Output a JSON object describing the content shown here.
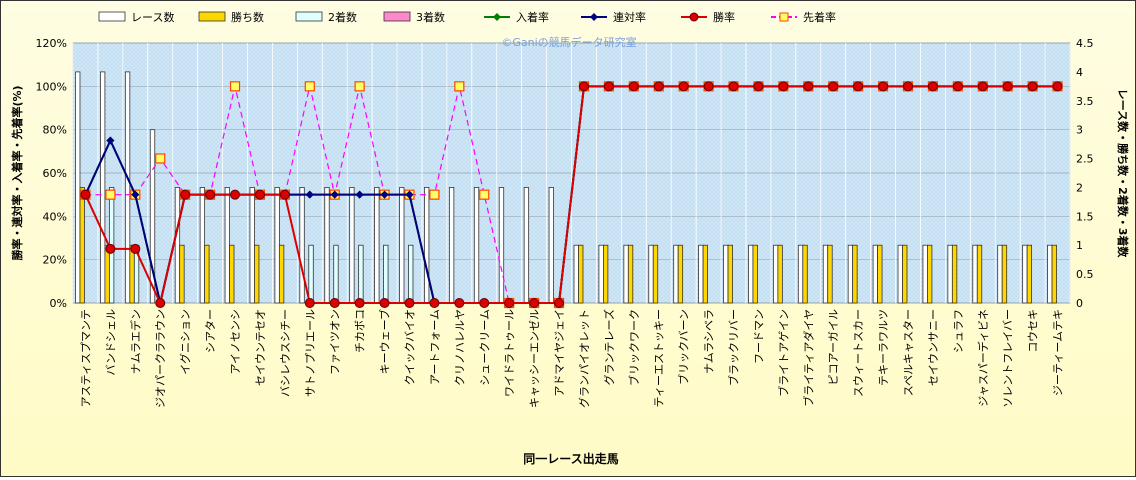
{
  "watermark": "©Ganiの競馬データ研究室",
  "chart_data": {
    "type": "bar",
    "xlabel": "同一レース出走馬",
    "ylabel_left": "勝率・連対率・入着率・先着率(%)",
    "ylabel_right": "レース数・勝ち数・2着数・3着数",
    "y_left_range": [
      0,
      120
    ],
    "y_left_ticks": [
      "0%",
      "20%",
      "40%",
      "60%",
      "80%",
      "100%",
      "120%"
    ],
    "y_right_range": [
      0,
      4.5
    ],
    "y_right_ticks": [
      "0",
      "0.5",
      "1",
      "1.5",
      "2",
      "2.5",
      "3",
      "3.5",
      "4",
      "4.5"
    ],
    "legend_position": "top",
    "grid": true,
    "categories": [
      "アスティスプマンテ",
      "バンドシェル",
      "ナムラエデン",
      "ジオパークララウン",
      "イグニション",
      "シアター",
      "アイノセンシ",
      "セイウンテセオ",
      "バシレウスシチー",
      "サトノプリエール",
      "ファイツオン",
      "チカボコ",
      "キーウェーブ",
      "クイックバイオ",
      "アートフォーム",
      "クリノハレルヤ",
      "シュークリーム",
      "ワイドラトゥール",
      "キャッシーエンゼル",
      "アドマイヤジェイ",
      "グランパイオレット",
      "グランテレーズ",
      "ブリックワーク",
      "ティーエストッキー",
      "ブリックバーン",
      "ナムラシベラ",
      "ブラックリバー",
      "フードマン",
      "ブライトアゲイン",
      "ブライティアダイヤ",
      "ピコアーガイル",
      "スウィートスカー",
      "テキーラワルツ",
      "スペルキャスター",
      "セイウンサニー",
      "シュラフ",
      "ジャスパーディビネ",
      "ソレントフレイバー",
      "コウセキ",
      "ジーティームテキ"
    ],
    "series": [
      {
        "name": "レース数",
        "kind": "bar",
        "axis": "right",
        "color": "#ffffff",
        "values": [
          4,
          4,
          4,
          3,
          2,
          2,
          2,
          2,
          2,
          2,
          2,
          2,
          2,
          2,
          2,
          2,
          2,
          2,
          2,
          2,
          1,
          1,
          1,
          1,
          1,
          1,
          1,
          1,
          1,
          1,
          1,
          1,
          1,
          1,
          1,
          1,
          1,
          1,
          1,
          1
        ]
      },
      {
        "name": "勝ち数",
        "kind": "bar",
        "axis": "right",
        "color": "#ffd700",
        "values": [
          2,
          1,
          1,
          0,
          1,
          1,
          1,
          1,
          1,
          0,
          0,
          0,
          0,
          0,
          0,
          0,
          0,
          0,
          0,
          0,
          1,
          1,
          1,
          1,
          1,
          1,
          1,
          1,
          1,
          1,
          1,
          1,
          1,
          1,
          1,
          1,
          1,
          1,
          1,
          1
        ]
      },
      {
        "name": "2着数",
        "kind": "bar",
        "axis": "right",
        "color": "#e0ffff",
        "values": [
          0,
          2,
          1,
          0,
          0,
          0,
          0,
          0,
          0,
          1,
          1,
          1,
          1,
          1,
          0,
          0,
          0,
          0,
          0,
          0,
          0,
          0,
          0,
          0,
          0,
          0,
          0,
          0,
          0,
          0,
          0,
          0,
          0,
          0,
          0,
          0,
          0,
          0,
          0,
          0
        ]
      },
      {
        "name": "3着数",
        "kind": "bar",
        "axis": "right",
        "color": "#ff88cc",
        "values": [
          0,
          0,
          0,
          0,
          0,
          0,
          0,
          0,
          0,
          0,
          0,
          0,
          0,
          0,
          0,
          0,
          0,
          0,
          0,
          0,
          0,
          0,
          0,
          0,
          0,
          0,
          0,
          0,
          0,
          0,
          0,
          0,
          0,
          0,
          0,
          0,
          0,
          0,
          0,
          0
        ]
      },
      {
        "name": "入着率",
        "kind": "line",
        "axis": "left",
        "color": "#008000",
        "marker": "diamond",
        "values": [
          50,
          75,
          50,
          0,
          50,
          50,
          50,
          50,
          50,
          50,
          50,
          50,
          50,
          50,
          0,
          0,
          0,
          0,
          0,
          0,
          100,
          100,
          100,
          100,
          100,
          100,
          100,
          100,
          100,
          100,
          100,
          100,
          100,
          100,
          100,
          100,
          100,
          100,
          100,
          100
        ]
      },
      {
        "name": "連対率",
        "kind": "line",
        "axis": "left",
        "color": "#000080",
        "marker": "diamond",
        "values": [
          50,
          75,
          50,
          0,
          50,
          50,
          50,
          50,
          50,
          50,
          50,
          50,
          50,
          50,
          0,
          0,
          0,
          0,
          0,
          0,
          100,
          100,
          100,
          100,
          100,
          100,
          100,
          100,
          100,
          100,
          100,
          100,
          100,
          100,
          100,
          100,
          100,
          100,
          100,
          100
        ]
      },
      {
        "name": "勝率",
        "kind": "line",
        "axis": "left",
        "color": "#dd0000",
        "marker": "circle",
        "values": [
          50,
          25,
          25,
          0,
          50,
          50,
          50,
          50,
          50,
          0,
          0,
          0,
          0,
          0,
          0,
          0,
          0,
          0,
          0,
          0,
          100,
          100,
          100,
          100,
          100,
          100,
          100,
          100,
          100,
          100,
          100,
          100,
          100,
          100,
          100,
          100,
          100,
          100,
          100,
          100
        ]
      },
      {
        "name": "先着率",
        "kind": "dashed",
        "axis": "left",
        "color": "#ff00ff",
        "marker": "square",
        "values": [
          50,
          50,
          50,
          66.7,
          50,
          50,
          100,
          50,
          50,
          100,
          50,
          100,
          50,
          50,
          50,
          100,
          50,
          0,
          0,
          0,
          100,
          100,
          100,
          100,
          100,
          100,
          100,
          100,
          100,
          100,
          100,
          100,
          100,
          100,
          100,
          100,
          100,
          100,
          100,
          100
        ]
      }
    ]
  }
}
